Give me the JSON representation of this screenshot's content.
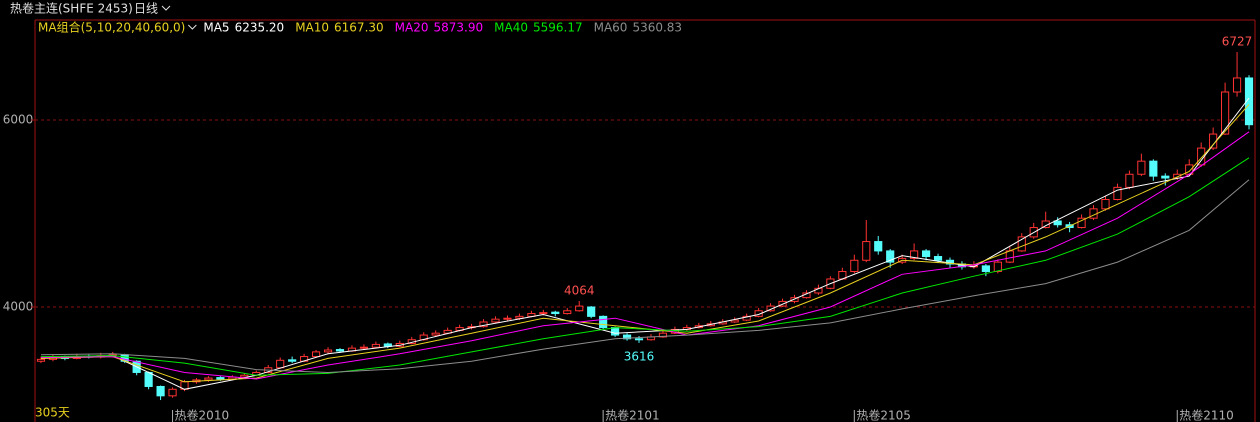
{
  "chart_data": {
    "type": "candlestick",
    "title": "热卷主连(SHFE 2453)",
    "period": "日线",
    "indicator": "MA组合(5,10,20,40,60,0)",
    "span_label": "305天",
    "up_color": "#ff3232",
    "down_color": "#54fcfc",
    "ylim": [
      2770,
      7070
    ],
    "yticks": [
      4000,
      6000
    ],
    "grid": true,
    "xlim": [
      -0.5,
      101.5
    ],
    "xticks": [
      {
        "value": 11,
        "label": "热卷2010"
      },
      {
        "value": 47,
        "label": "热卷2101"
      },
      {
        "value": 68,
        "label": "热卷2105"
      },
      {
        "value": 95,
        "label": "热卷2110"
      }
    ],
    "candles": [
      [
        3420,
        3470,
        3400,
        3440
      ],
      [
        3440,
        3490,
        3420,
        3460
      ],
      [
        3465,
        3480,
        3430,
        3450
      ],
      [
        3450,
        3500,
        3440,
        3470
      ],
      [
        3475,
        3490,
        3450,
        3465
      ],
      [
        3465,
        3510,
        3450,
        3480
      ],
      [
        3480,
        3520,
        3460,
        3490
      ],
      [
        3490,
        3500,
        3400,
        3420
      ],
      [
        3420,
        3430,
        3270,
        3300
      ],
      [
        3300,
        3310,
        3120,
        3150
      ],
      [
        3150,
        3160,
        3005,
        3050
      ],
      [
        3050,
        3140,
        3030,
        3120
      ],
      [
        3120,
        3220,
        3100,
        3200
      ],
      [
        3200,
        3240,
        3180,
        3220
      ],
      [
        3220,
        3260,
        3200,
        3240
      ],
      [
        3245,
        3260,
        3210,
        3230
      ],
      [
        3230,
        3270,
        3220,
        3250
      ],
      [
        3250,
        3290,
        3240,
        3270
      ],
      [
        3270,
        3320,
        3260,
        3300
      ],
      [
        3300,
        3380,
        3290,
        3350
      ],
      [
        3350,
        3460,
        3340,
        3430
      ],
      [
        3435,
        3470,
        3400,
        3420
      ],
      [
        3420,
        3500,
        3410,
        3470
      ],
      [
        3470,
        3540,
        3460,
        3520
      ],
      [
        3520,
        3570,
        3500,
        3540
      ],
      [
        3545,
        3560,
        3510,
        3530
      ],
      [
        3530,
        3590,
        3520,
        3560
      ],
      [
        3560,
        3600,
        3540,
        3570
      ],
      [
        3570,
        3630,
        3560,
        3600
      ],
      [
        3605,
        3620,
        3560,
        3580
      ],
      [
        3580,
        3640,
        3570,
        3610
      ],
      [
        3610,
        3680,
        3600,
        3650
      ],
      [
        3650,
        3730,
        3640,
        3700
      ],
      [
        3700,
        3750,
        3680,
        3720
      ],
      [
        3720,
        3780,
        3710,
        3750
      ],
      [
        3750,
        3810,
        3740,
        3780
      ],
      [
        3785,
        3820,
        3760,
        3790
      ],
      [
        3790,
        3870,
        3780,
        3840
      ],
      [
        3840,
        3900,
        3830,
        3870
      ],
      [
        3875,
        3910,
        3850,
        3880
      ],
      [
        3880,
        3930,
        3860,
        3900
      ],
      [
        3900,
        3960,
        3890,
        3930
      ],
      [
        3930,
        3970,
        3910,
        3940
      ],
      [
        3945,
        3960,
        3900,
        3930
      ],
      [
        3930,
        3990,
        3920,
        3960
      ],
      [
        3960,
        4064,
        3950,
        4010
      ],
      [
        4000,
        4010,
        3880,
        3900
      ],
      [
        3900,
        3910,
        3760,
        3780
      ],
      [
        3780,
        3790,
        3680,
        3700
      ],
      [
        3700,
        3720,
        3640,
        3660
      ],
      [
        3660,
        3690,
        3616,
        3650
      ],
      [
        3650,
        3710,
        3640,
        3680
      ],
      [
        3680,
        3750,
        3670,
        3720
      ],
      [
        3720,
        3790,
        3710,
        3760
      ],
      [
        3760,
        3810,
        3740,
        3780
      ],
      [
        3780,
        3830,
        3770,
        3800
      ],
      [
        3800,
        3850,
        3790,
        3820
      ],
      [
        3820,
        3870,
        3810,
        3840
      ],
      [
        3840,
        3890,
        3830,
        3860
      ],
      [
        3860,
        3930,
        3850,
        3900
      ],
      [
        3900,
        3990,
        3890,
        3960
      ],
      [
        3960,
        4040,
        3950,
        4010
      ],
      [
        4010,
        4090,
        4000,
        4060
      ],
      [
        4060,
        4130,
        4040,
        4100
      ],
      [
        4100,
        4180,
        4090,
        4150
      ],
      [
        4150,
        4240,
        4130,
        4200
      ],
      [
        4200,
        4330,
        4190,
        4300
      ],
      [
        4300,
        4420,
        4290,
        4380
      ],
      [
        4380,
        4560,
        4360,
        4500
      ],
      [
        4500,
        4930,
        4480,
        4700
      ],
      [
        4700,
        4760,
        4560,
        4600
      ],
      [
        4600,
        4620,
        4420,
        4480
      ],
      [
        4480,
        4560,
        4460,
        4520
      ],
      [
        4520,
        4680,
        4500,
        4600
      ],
      [
        4600,
        4620,
        4500,
        4540
      ],
      [
        4540,
        4570,
        4470,
        4500
      ],
      [
        4500,
        4530,
        4420,
        4460
      ],
      [
        4460,
        4490,
        4400,
        4430
      ],
      [
        4430,
        4490,
        4410,
        4440
      ],
      [
        4440,
        4460,
        4330,
        4380
      ],
      [
        4380,
        4510,
        4360,
        4480
      ],
      [
        4480,
        4640,
        4470,
        4600
      ],
      [
        4600,
        4790,
        4590,
        4750
      ],
      [
        4750,
        4900,
        4730,
        4850
      ],
      [
        4850,
        5020,
        4840,
        4920
      ],
      [
        4920,
        4960,
        4850,
        4880
      ],
      [
        4880,
        4910,
        4800,
        4850
      ],
      [
        4850,
        4990,
        4840,
        4950
      ],
      [
        4950,
        5090,
        4930,
        5050
      ],
      [
        5050,
        5190,
        5030,
        5150
      ],
      [
        5150,
        5320,
        5140,
        5280
      ],
      [
        5280,
        5460,
        5260,
        5420
      ],
      [
        5420,
        5640,
        5400,
        5560
      ],
      [
        5560,
        5580,
        5350,
        5400
      ],
      [
        5400,
        5430,
        5300,
        5380
      ],
      [
        5380,
        5470,
        5360,
        5420
      ],
      [
        5420,
        5580,
        5400,
        5520
      ],
      [
        5520,
        5760,
        5500,
        5700
      ],
      [
        5700,
        5920,
        5680,
        5850
      ],
      [
        5850,
        6400,
        5840,
        6300
      ],
      [
        6300,
        6727,
        6250,
        6450
      ],
      [
        6450,
        6480,
        5900,
        5950
      ]
    ],
    "series": [
      {
        "name": "MA5",
        "color": "#ffffff",
        "value_label": "6235.20",
        "x": [
          0,
          6,
          12,
          18,
          24,
          30,
          36,
          42,
          48,
          54,
          60,
          66,
          72,
          78,
          84,
          90,
          96,
          101
        ],
        "values": [
          3450,
          3480,
          3120,
          3270,
          3500,
          3590,
          3780,
          3920,
          3720,
          3760,
          3920,
          4250,
          4550,
          4430,
          4870,
          5250,
          5400,
          6235.2
        ]
      },
      {
        "name": "MA10",
        "color": "#e8d020",
        "value_label": "6167.30",
        "x": [
          0,
          6,
          12,
          18,
          24,
          30,
          36,
          42,
          48,
          54,
          60,
          66,
          72,
          78,
          84,
          90,
          96,
          101
        ],
        "values": [
          3450,
          3470,
          3200,
          3240,
          3450,
          3560,
          3720,
          3880,
          3800,
          3720,
          3850,
          4150,
          4500,
          4450,
          4750,
          5100,
          5450,
          6167.3
        ]
      },
      {
        "name": "MA20",
        "color": "#ff00ff",
        "value_label": "5873.90",
        "x": [
          0,
          6,
          12,
          18,
          24,
          30,
          36,
          42,
          48,
          54,
          60,
          66,
          72,
          78,
          84,
          90,
          96,
          101
        ],
        "values": [
          3460,
          3470,
          3300,
          3230,
          3380,
          3500,
          3640,
          3800,
          3880,
          3700,
          3800,
          4000,
          4350,
          4450,
          4600,
          4950,
          5420,
          5873.9
        ]
      },
      {
        "name": "MA40",
        "color": "#00e600",
        "value_label": "5596.17",
        "x": [
          0,
          6,
          12,
          18,
          24,
          30,
          36,
          42,
          48,
          54,
          60,
          66,
          72,
          78,
          84,
          90,
          96,
          101
        ],
        "values": [
          3470,
          3480,
          3400,
          3270,
          3290,
          3380,
          3520,
          3660,
          3780,
          3740,
          3790,
          3900,
          4150,
          4330,
          4500,
          4780,
          5180,
          5596.17
        ]
      },
      {
        "name": "MA60",
        "color": "#8c8c8c",
        "value_label": "5360.83",
        "x": [
          0,
          6,
          12,
          18,
          24,
          30,
          36,
          42,
          48,
          54,
          60,
          66,
          72,
          78,
          84,
          90,
          96,
          101
        ],
        "values": [
          3490,
          3500,
          3450,
          3330,
          3300,
          3340,
          3420,
          3550,
          3660,
          3700,
          3750,
          3830,
          3980,
          4120,
          4250,
          4480,
          4820,
          5360.83
        ]
      }
    ],
    "annotations": [
      {
        "x": 100,
        "y": 6727,
        "color": "#ff5050"
      },
      {
        "x": 45,
        "y": 4064,
        "color": "#ff5050"
      },
      {
        "x": 50,
        "y": 3616,
        "color": "#54fcfc"
      }
    ]
  }
}
